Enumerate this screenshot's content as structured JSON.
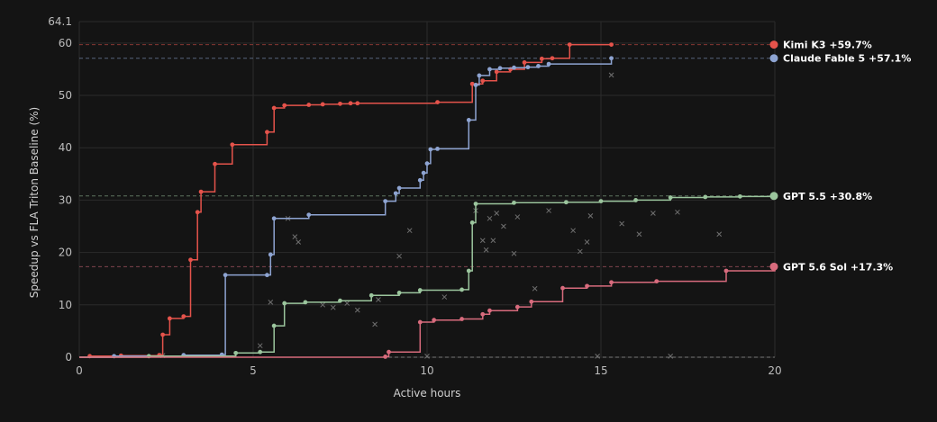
{
  "colors": {
    "background": "#141414",
    "grid": "#2b2b2b",
    "tick": "#bdbdbd"
  },
  "chart_data": {
    "type": "line",
    "xlabel": "Active hours",
    "ylabel": "Speedup vs FLA Triton Baseline (%)",
    "xlim": [
      0,
      20
    ],
    "ylim": [
      0,
      64.1
    ],
    "x_ticks": [
      "0",
      "5",
      "10",
      "15",
      "20"
    ],
    "y_ticks": [
      "0",
      "10",
      "20",
      "30",
      "40",
      "50",
      "60",
      "64.1"
    ],
    "grid": true,
    "step_shape": "hv",
    "legend_placement": "right edge, labels at final values",
    "series": [
      {
        "name": "Kimi K3",
        "label": "Kimi K3 +59.7%",
        "color": "#e5534b",
        "final": 59.7,
        "points": [
          [
            0,
            0
          ],
          [
            0.3,
            0.2
          ],
          [
            1.2,
            0.3
          ],
          [
            2.3,
            0.4
          ],
          [
            2.4,
            4.3
          ],
          [
            2.6,
            7.4
          ],
          [
            3.0,
            7.8
          ],
          [
            3.2,
            18.6
          ],
          [
            3.4,
            27.7
          ],
          [
            3.5,
            31.6
          ],
          [
            3.9,
            36.9
          ],
          [
            4.4,
            40.6
          ],
          [
            5.4,
            43.0
          ],
          [
            5.6,
            47.6
          ],
          [
            5.9,
            48.1
          ],
          [
            6.6,
            48.2
          ],
          [
            7.0,
            48.3
          ],
          [
            7.5,
            48.4
          ],
          [
            7.8,
            48.5
          ],
          [
            8.0,
            48.5
          ],
          [
            10.3,
            48.7
          ],
          [
            11.3,
            52.2
          ],
          [
            11.6,
            52.8
          ],
          [
            12.0,
            54.5
          ],
          [
            12.4,
            55.0
          ],
          [
            12.8,
            56.3
          ],
          [
            13.3,
            57.0
          ],
          [
            13.6,
            57.1
          ],
          [
            14.1,
            59.7
          ],
          [
            15.3,
            59.7
          ]
        ]
      },
      {
        "name": "Claude Fable 5",
        "label": "Claude Fable 5 +57.1%",
        "color": "#8ea4d2",
        "final": 57.1,
        "points": [
          [
            0,
            0
          ],
          [
            1.0,
            0.2
          ],
          [
            3.0,
            0.4
          ],
          [
            4.1,
            0.5
          ],
          [
            4.2,
            15.7
          ],
          [
            5.4,
            15.7
          ],
          [
            5.5,
            19.6
          ],
          [
            5.6,
            26.5
          ],
          [
            6.6,
            27.2
          ],
          [
            8.8,
            29.8
          ],
          [
            9.1,
            31.3
          ],
          [
            9.2,
            32.3
          ],
          [
            9.8,
            33.8
          ],
          [
            9.9,
            35.2
          ],
          [
            10.0,
            37.0
          ],
          [
            10.1,
            39.7
          ],
          [
            10.3,
            39.8
          ],
          [
            11.2,
            45.3
          ],
          [
            11.4,
            52.0
          ],
          [
            11.5,
            53.8
          ],
          [
            11.8,
            55.0
          ],
          [
            12.1,
            55.2
          ],
          [
            12.5,
            55.3
          ],
          [
            12.9,
            55.4
          ],
          [
            13.2,
            55.6
          ],
          [
            13.5,
            56.0
          ],
          [
            15.3,
            57.1
          ]
        ]
      },
      {
        "name": "GPT 5.5",
        "label": "GPT 5.5 +30.8%",
        "color": "#9bc59d",
        "final": 30.8,
        "points": [
          [
            0,
            0
          ],
          [
            2.0,
            0.2
          ],
          [
            4.5,
            0.8
          ],
          [
            5.2,
            1.0
          ],
          [
            5.6,
            6.0
          ],
          [
            5.9,
            10.3
          ],
          [
            6.5,
            10.5
          ],
          [
            7.5,
            10.8
          ],
          [
            8.4,
            11.8
          ],
          [
            9.2,
            12.3
          ],
          [
            9.8,
            12.8
          ],
          [
            11.0,
            12.9
          ],
          [
            11.2,
            16.5
          ],
          [
            11.3,
            25.7
          ],
          [
            11.4,
            29.3
          ],
          [
            12.5,
            29.5
          ],
          [
            14.0,
            29.6
          ],
          [
            15.0,
            29.8
          ],
          [
            16.0,
            30.0
          ],
          [
            17.0,
            30.5
          ],
          [
            18.0,
            30.6
          ],
          [
            19.0,
            30.7
          ],
          [
            20.0,
            30.8
          ]
        ]
      },
      {
        "name": "GPT 5.6 Sol",
        "label": "GPT 5.6 Sol +17.3%",
        "color": "#d86b7d",
        "final": 17.3,
        "points": [
          [
            0,
            0
          ],
          [
            8.8,
            0.1
          ],
          [
            8.9,
            1.0
          ],
          [
            9.8,
            6.7
          ],
          [
            10.2,
            7.1
          ],
          [
            11.0,
            7.3
          ],
          [
            11.6,
            8.2
          ],
          [
            11.8,
            8.9
          ],
          [
            12.6,
            9.6
          ],
          [
            13.0,
            10.6
          ],
          [
            13.9,
            13.2
          ],
          [
            14.6,
            13.6
          ],
          [
            15.3,
            14.3
          ],
          [
            16.6,
            14.5
          ],
          [
            18.6,
            16.5
          ],
          [
            20.0,
            17.3
          ]
        ]
      }
    ],
    "rejected_attempts": [
      [
        2.4,
        0.3
      ],
      [
        5.2,
        2.2
      ],
      [
        5.5,
        10.5
      ],
      [
        6.0,
        26.5
      ],
      [
        6.2,
        23.0
      ],
      [
        6.3,
        22.0
      ],
      [
        7.0,
        10.0
      ],
      [
        7.3,
        9.5
      ],
      [
        7.7,
        10.3
      ],
      [
        8.0,
        9.0
      ],
      [
        8.5,
        6.3
      ],
      [
        8.6,
        11.0
      ],
      [
        9.2,
        19.3
      ],
      [
        9.5,
        24.2
      ],
      [
        10.0,
        0.2
      ],
      [
        10.5,
        11.5
      ],
      [
        11.4,
        28.0
      ],
      [
        11.6,
        22.3
      ],
      [
        11.7,
        20.5
      ],
      [
        11.8,
        26.5
      ],
      [
        11.9,
        22.3
      ],
      [
        12.0,
        27.5
      ],
      [
        12.2,
        25.0
      ],
      [
        12.5,
        19.8
      ],
      [
        12.6,
        26.8
      ],
      [
        13.1,
        13.1
      ],
      [
        13.5,
        28.0
      ],
      [
        14.2,
        24.2
      ],
      [
        14.4,
        20.2
      ],
      [
        14.6,
        22.0
      ],
      [
        14.7,
        27.0
      ],
      [
        14.9,
        0.2
      ],
      [
        15.6,
        25.5
      ],
      [
        16.1,
        23.5
      ],
      [
        16.5,
        27.5
      ],
      [
        17.0,
        0.2
      ],
      [
        17.2,
        27.7
      ],
      [
        18.4,
        23.5
      ],
      [
        15.3,
        53.9
      ]
    ]
  }
}
